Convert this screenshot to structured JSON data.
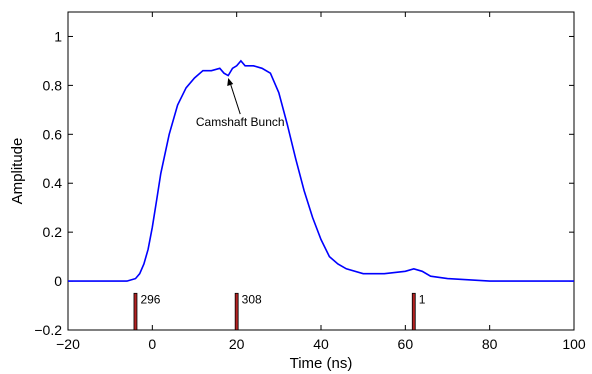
{
  "chart_data": {
    "type": "line",
    "title": "",
    "xlabel": "Time (ns)",
    "ylabel": "Amplitude",
    "xlim": [
      -20,
      100
    ],
    "ylim": [
      -0.2,
      1.1
    ],
    "xticks": [
      -20,
      0,
      20,
      40,
      60,
      80,
      100
    ],
    "yticks": [
      -0.2,
      0,
      0.2,
      0.4,
      0.6,
      0.8,
      1
    ],
    "xtick_labels": [
      "−20",
      "0",
      "20",
      "40",
      "60",
      "80",
      "100"
    ],
    "ytick_labels": [
      "−0.2",
      "0",
      "0.2",
      "0.4",
      "0.6",
      "0.8",
      "1"
    ],
    "grid": false,
    "series": [
      {
        "color": "#0000ff",
        "x": [
          -20,
          -15,
          -10,
          -6,
          -4,
          -3,
          -2,
          -1,
          0,
          1,
          2,
          4,
          6,
          8,
          10,
          12,
          14,
          16,
          17,
          18,
          19,
          20,
          21,
          22,
          24,
          26,
          28,
          30,
          32,
          34,
          36,
          38,
          40,
          42,
          44,
          46,
          50,
          55,
          60,
          62,
          64,
          66,
          70,
          80,
          90,
          100
        ],
        "y": [
          0.0,
          0.0,
          0.0,
          0.0,
          0.01,
          0.03,
          0.07,
          0.13,
          0.22,
          0.33,
          0.44,
          0.6,
          0.72,
          0.79,
          0.83,
          0.86,
          0.86,
          0.87,
          0.85,
          0.84,
          0.87,
          0.88,
          0.9,
          0.88,
          0.88,
          0.87,
          0.85,
          0.77,
          0.64,
          0.5,
          0.37,
          0.26,
          0.17,
          0.1,
          0.07,
          0.05,
          0.03,
          0.03,
          0.04,
          0.05,
          0.04,
          0.02,
          0.01,
          0.0,
          0.0,
          0.0
        ]
      }
    ],
    "markers": [
      {
        "x": -4,
        "label": "296",
        "color": "#b22222"
      },
      {
        "x": 20,
        "label": "308",
        "color": "#b22222"
      },
      {
        "x": 62,
        "label": "1",
        "color": "#b22222"
      }
    ],
    "marker_range": [
      -0.2,
      -0.05
    ],
    "annotation": {
      "text": "Camshaft Bunch",
      "x": 18,
      "y": 0.83
    }
  }
}
